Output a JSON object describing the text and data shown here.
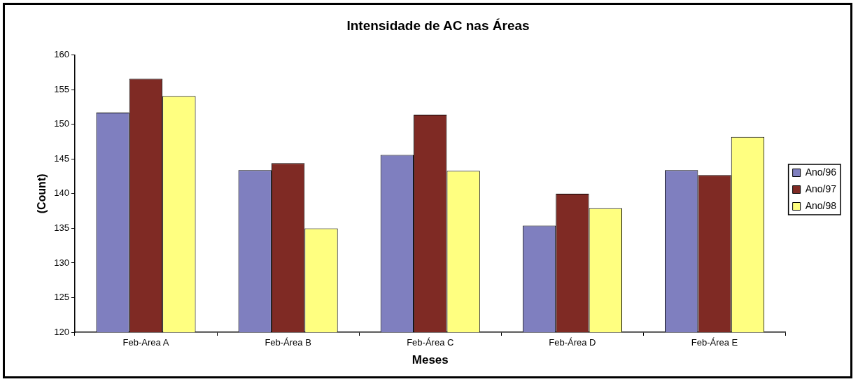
{
  "chart_data": {
    "type": "bar",
    "title": "Intensidade de AC nas Áreas",
    "xlabel": "Meses",
    "ylabel": "(Count)",
    "categories": [
      "Feb-Area A",
      "Feb-Área B",
      "Feb-Área C",
      "Feb-Área D",
      "Feb-Área E"
    ],
    "series": [
      {
        "name": "Ano/96",
        "color": "#7f7fbf",
        "values": [
          151.7,
          143.4,
          145.6,
          135.4,
          143.4
        ]
      },
      {
        "name": "Ano/97",
        "color": "#7f2a24",
        "values": [
          156.6,
          144.4,
          151.4,
          140.0,
          142.7
        ]
      },
      {
        "name": "Ano/98",
        "color": "#ffff80",
        "values": [
          154.1,
          135.0,
          143.3,
          137.9,
          148.2
        ]
      }
    ],
    "ylim": [
      120,
      160
    ],
    "yticks": [
      120,
      125,
      130,
      135,
      140,
      145,
      150,
      155,
      160
    ],
    "grid": false,
    "legend": "right"
  }
}
